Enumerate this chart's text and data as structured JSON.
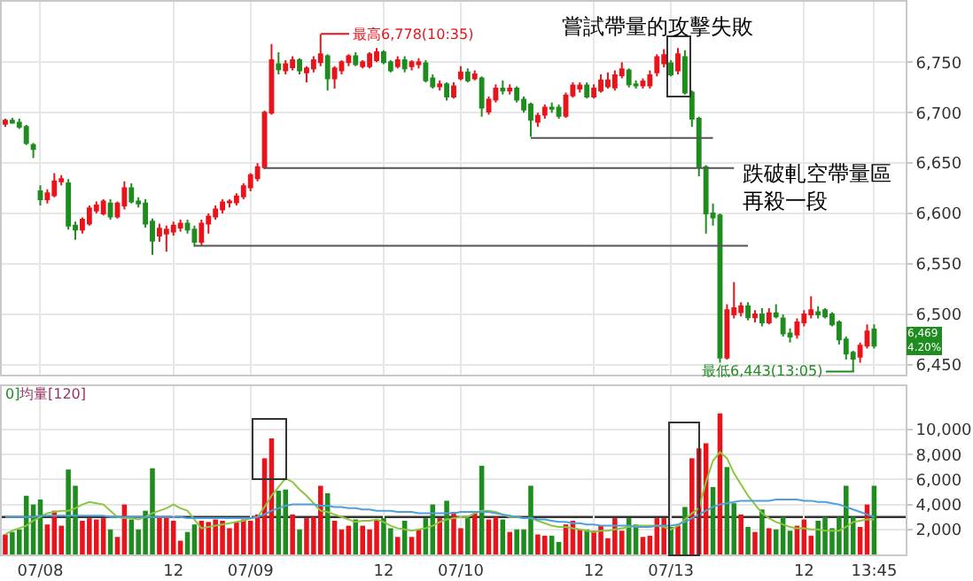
{
  "chart_data": [
    {
      "type": "candlestick",
      "colors": [
        "#e8141c",
        "#1e8c1e",
        "#1e8c1e",
        "#1e8c1e",
        "#1e8c1e",
        "#1e8c1e",
        "#e8141c",
        "#e8141c",
        "#e8141c",
        "#1e8c1e",
        "#1e8c1e",
        "#e8141c",
        "#e8141c",
        "#e8141c",
        "#e8141c",
        "#1e8c1e",
        "#e8141c",
        "#e8141c",
        "#1e8c1e",
        "#1e8c1e",
        "#1e8c1e",
        "#1e8c1e",
        "#e8141c",
        "#e8141c",
        "#e8141c",
        "#e8141c",
        "#1e8c1e",
        "#1e8c1e",
        "#e8141c",
        "#e8141c",
        "#e8141c",
        "#e8141c",
        "#e8141c",
        "#e8141c",
        "#e8141c",
        "#e8141c",
        "#e8141c",
        "#e8141c",
        "#e8141c",
        "#1e8c1e",
        "#e8141c",
        "#e8141c",
        "#1e8c1e",
        "#e8141c",
        "#e8141c",
        "#e8141c",
        "#1e8c1e",
        "#e8141c",
        "#e8141c",
        "#e8141c",
        "#1e8c1e",
        "#e8141c",
        "#e8141c",
        "#e8141c",
        "#1e8c1e",
        "#1e8c1e",
        "#e8141c",
        "#1e8c1e",
        "#e8141c",
        "#e8141c",
        "#1e8c1e",
        "#1e8c1e",
        "#e8141c",
        "#1e8c1e",
        "#e8141c",
        "#e8141c",
        "#1e8c1e",
        "#e8141c",
        "#1e8c1e",
        "#e8141c",
        "#e8141c",
        "#1e8c1e",
        "#e8141c",
        "#1e8c1e",
        "#1e8c1e",
        "#1e8c1e",
        "#e8141c",
        "#e8141c",
        "#1e8c1e",
        "#1e8c1e",
        "#e8141c",
        "#e8141c",
        "#e8141c",
        "#1e8c1e",
        "#e8141c",
        "#e8141c",
        "#e8141c",
        "#e8141c",
        "#e8141c",
        "#1e8c1e",
        "#1e8c1e",
        "#e8141c",
        "#e8141c",
        "#e8141c",
        "#e8141c",
        "#1e8c1e",
        "#e8141c",
        "#1e8c1e",
        "#1e8c1e",
        "#1e8c1e",
        "#1e8c1e",
        "#1e8c1e",
        "#1e8c1e",
        "#e8141c",
        "#e8141c",
        "#e8141c",
        "#1e8c1e",
        "#e8141c",
        "#1e8c1e",
        "#e8141c",
        "#1e8c1e",
        "#1e8c1e",
        "#1e8c1e",
        "#e8141c",
        "#e8141c",
        "#e8141c",
        "#1e8c1e",
        "#1e8c1e",
        "#1e8c1e",
        "#1e8c1e",
        "#1e8c1e",
        "#1e8c1e",
        "#e8141c",
        "#e8141c",
        "#1e8c1e"
      ],
      "ohlc": [
        [
          6689,
          6694,
          6686,
          6692
        ],
        [
          6692,
          6695,
          6689,
          6690
        ],
        [
          6690,
          6694,
          6684,
          6686
        ],
        [
          6686,
          6688,
          6668,
          6670
        ],
        [
          6668,
          6670,
          6655,
          6664
        ],
        [
          6622,
          6628,
          6608,
          6614
        ],
        [
          6614,
          6624,
          6610,
          6620
        ],
        [
          6618,
          6640,
          6616,
          6632
        ],
        [
          6632,
          6638,
          6628,
          6634
        ],
        [
          6630,
          6634,
          6584,
          6588
        ],
        [
          6588,
          6592,
          6574,
          6584
        ],
        [
          6584,
          6596,
          6580,
          6594
        ],
        [
          6590,
          6608,
          6588,
          6605
        ],
        [
          6603,
          6612,
          6600,
          6608
        ],
        [
          6600,
          6614,
          6598,
          6612
        ],
        [
          6610,
          6614,
          6594,
          6597
        ],
        [
          6597,
          6612,
          6595,
          6610
        ],
        [
          6608,
          6632,
          6604,
          6625
        ],
        [
          6625,
          6630,
          6610,
          6612
        ],
        [
          6612,
          6616,
          6606,
          6610
        ],
        [
          6610,
          6614,
          6586,
          6590
        ],
        [
          6592,
          6595,
          6559,
          6573
        ],
        [
          6578,
          6590,
          6572,
          6585
        ],
        [
          6580,
          6588,
          6562,
          6584
        ],
        [
          6582,
          6592,
          6578,
          6588
        ],
        [
          6586,
          6594,
          6582,
          6590
        ],
        [
          6590,
          6594,
          6580,
          6584
        ],
        [
          6584,
          6588,
          6567,
          6572
        ],
        [
          6572,
          6594,
          6568,
          6590
        ],
        [
          6590,
          6600,
          6580,
          6597
        ],
        [
          6597,
          6608,
          6594,
          6604
        ],
        [
          6604,
          6614,
          6600,
          6611
        ],
        [
          6611,
          6614,
          6606,
          6612
        ],
        [
          6611,
          6620,
          6608,
          6617
        ],
        [
          6617,
          6630,
          6614,
          6627
        ],
        [
          6626,
          6640,
          6622,
          6638
        ],
        [
          6635,
          6650,
          6632,
          6646
        ],
        [
          6646,
          6702,
          6644,
          6700
        ],
        [
          6700,
          6768,
          6698,
          6752
        ],
        [
          6748,
          6760,
          6738,
          6743
        ],
        [
          6742,
          6752,
          6738,
          6748
        ],
        [
          6745,
          6756,
          6742,
          6752
        ],
        [
          6752,
          6754,
          6738,
          6742
        ],
        [
          6740,
          6746,
          6730,
          6744
        ],
        [
          6744,
          6756,
          6740,
          6752
        ],
        [
          6750,
          6778,
          6746,
          6758
        ],
        [
          6756,
          6758,
          6722,
          6734
        ],
        [
          6734,
          6746,
          6724,
          6744
        ],
        [
          6742,
          6752,
          6738,
          6750
        ],
        [
          6750,
          6758,
          6746,
          6756
        ],
        [
          6756,
          6760,
          6746,
          6748
        ],
        [
          6746,
          6752,
          6744,
          6750
        ],
        [
          6746,
          6760,
          6744,
          6758
        ],
        [
          6752,
          6764,
          6750,
          6760
        ],
        [
          6760,
          6762,
          6748,
          6750
        ],
        [
          6750,
          6752,
          6740,
          6742
        ],
        [
          6746,
          6756,
          6744,
          6752
        ],
        [
          6752,
          6756,
          6740,
          6744
        ],
        [
          6746,
          6752,
          6742,
          6750
        ],
        [
          6748,
          6754,
          6744,
          6750
        ],
        [
          6749,
          6752,
          6730,
          6732
        ],
        [
          6734,
          6738,
          6724,
          6726
        ],
        [
          6726,
          6732,
          6722,
          6728
        ],
        [
          6728,
          6730,
          6712,
          6716
        ],
        [
          6716,
          6730,
          6714,
          6726
        ],
        [
          6734,
          6746,
          6732,
          6740
        ],
        [
          6740,
          6744,
          6730,
          6732
        ],
        [
          6734,
          6742,
          6732,
          6738
        ],
        [
          6734,
          6736,
          6696,
          6705
        ],
        [
          6701,
          6716,
          6698,
          6713
        ],
        [
          6713,
          6728,
          6710,
          6724
        ],
        [
          6724,
          6732,
          6718,
          6722
        ],
        [
          6722,
          6728,
          6718,
          6724
        ],
        [
          6724,
          6726,
          6710,
          6713
        ],
        [
          6713,
          6716,
          6700,
          6703
        ],
        [
          6708,
          6710,
          6676,
          6693
        ],
        [
          6691,
          6700,
          6686,
          6697
        ],
        [
          6698,
          6708,
          6694,
          6705
        ],
        [
          6705,
          6710,
          6700,
          6704
        ],
        [
          6705,
          6708,
          6694,
          6697
        ],
        [
          6697,
          6720,
          6695,
          6717
        ],
        [
          6717,
          6730,
          6715,
          6727
        ],
        [
          6724,
          6730,
          6720,
          6727
        ],
        [
          6727,
          6730,
          6714,
          6716
        ],
        [
          6716,
          6728,
          6714,
          6724
        ],
        [
          6722,
          6738,
          6720,
          6732
        ],
        [
          6726,
          6740,
          6724,
          6732
        ],
        [
          6725,
          6742,
          6722,
          6737
        ],
        [
          6737,
          6750,
          6734,
          6743
        ],
        [
          6742,
          6744,
          6725,
          6728
        ],
        [
          6728,
          6732,
          6724,
          6727
        ],
        [
          6727,
          6734,
          6724,
          6731
        ],
        [
          6727,
          6742,
          6724,
          6737
        ],
        [
          6740,
          6758,
          6736,
          6755
        ],
        [
          6749,
          6763,
          6745,
          6757
        ],
        [
          6749,
          6752,
          6736,
          6738
        ],
        [
          6742,
          6764,
          6738,
          6758
        ],
        [
          6755,
          6762,
          6718,
          6720
        ],
        [
          6720,
          6722,
          6686,
          6694
        ],
        [
          6694,
          6696,
          6637,
          6646
        ],
        [
          6646,
          6648,
          6580,
          6600
        ],
        [
          6600,
          6610,
          6588,
          6596
        ],
        [
          6598,
          6600,
          6452,
          6457
        ],
        [
          6457,
          6510,
          6455,
          6504
        ],
        [
          6500,
          6532,
          6496,
          6506
        ],
        [
          6502,
          6512,
          6498,
          6508
        ],
        [
          6508,
          6512,
          6494,
          6497
        ],
        [
          6497,
          6504,
          6492,
          6500
        ],
        [
          6500,
          6506,
          6488,
          6492
        ],
        [
          6492,
          6506,
          6490,
          6501
        ],
        [
          6501,
          6510,
          6496,
          6498
        ],
        [
          6496,
          6500,
          6478,
          6481
        ],
        [
          6481,
          6486,
          6472,
          6478
        ],
        [
          6480,
          6496,
          6476,
          6492
        ],
        [
          6492,
          6504,
          6488,
          6500
        ],
        [
          6500,
          6518,
          6496,
          6504
        ],
        [
          6502,
          6508,
          6496,
          6500
        ],
        [
          6504,
          6506,
          6496,
          6498
        ],
        [
          6500,
          6502,
          6488,
          6490
        ],
        [
          6492,
          6494,
          6470,
          6475
        ],
        [
          6475,
          6478,
          6455,
          6461
        ],
        [
          6462,
          6464,
          6443,
          6456
        ],
        [
          6458,
          6472,
          6452,
          6469
        ],
        [
          6469,
          6490,
          6466,
          6483
        ],
        [
          6485,
          6490,
          6466,
          6469
        ]
      ],
      "series": [
        {
          "type": "line",
          "color": "#555555",
          "values": [
            null,
            null,
            null,
            null,
            null,
            null,
            null,
            null,
            null,
            null,
            null,
            null,
            null,
            null,
            null,
            null,
            null,
            null,
            null,
            null,
            null,
            null,
            null,
            null,
            null,
            null,
            null,
            null,
            null,
            null,
            null,
            null,
            null,
            null,
            null,
            null,
            null,
            null,
            null,
            null,
            null,
            null,
            null,
            null,
            null,
            null,
            null,
            null,
            null,
            null,
            null,
            null,
            null,
            null,
            null,
            null,
            null,
            null,
            null,
            null,
            null,
            null,
            null,
            null,
            null,
            null,
            null,
            null,
            null,
            null,
            null,
            null,
            null,
            null,
            null,
            6675,
            6675,
            6675,
            6675,
            6675,
            6675,
            6675,
            6675,
            6675,
            6675,
            6675,
            6675,
            6675,
            6675,
            6675,
            6675,
            6675,
            6675,
            6675,
            6675,
            6675,
            6675,
            6675,
            6675,
            6675,
            6675,
            6675,
            null,
            null,
            null,
            null,
            null,
            null,
            null,
            null,
            null,
            null,
            null,
            null,
            null,
            null,
            null,
            null,
            null,
            null,
            null,
            null,
            null,
            null,
            null
          ]
        },
        {
          "type": "line",
          "color": "#555555",
          "values": [
            null,
            null,
            null,
            null,
            null,
            null,
            null,
            null,
            null,
            null,
            null,
            null,
            null,
            null,
            null,
            null,
            null,
            null,
            null,
            null,
            null,
            null,
            null,
            null,
            null,
            null,
            null,
            null,
            null,
            null,
            null,
            null,
            null,
            null,
            null,
            null,
            null,
            6645,
            6645,
            6645,
            6645,
            6645,
            6645,
            6645,
            6645,
            6645,
            6645,
            6645,
            6645,
            6645,
            6645,
            6645,
            6645,
            6645,
            6645,
            6645,
            6645,
            6645,
            6645,
            6645,
            6645,
            6645,
            6645,
            6645,
            6645,
            6645,
            6645,
            6645,
            6645,
            6645,
            6645,
            6645,
            6645,
            6645,
            6645,
            6645,
            6645,
            6645,
            6645,
            6645,
            6645,
            6645,
            6645,
            6645,
            6645,
            6645,
            6645,
            6645,
            6645,
            6645,
            6645,
            6645,
            6645,
            6645,
            6645,
            6645,
            6645,
            6645,
            6645,
            6645,
            6645,
            6645,
            6645,
            6645,
            6645,
            null,
            null,
            null,
            null,
            null,
            null,
            null,
            null,
            null,
            null,
            null,
            null,
            null,
            null,
            null,
            null,
            null,
            null,
            null,
            null
          ]
        },
        {
          "type": "line",
          "color": "#555555",
          "values": [
            null,
            null,
            null,
            null,
            null,
            null,
            null,
            null,
            null,
            null,
            null,
            null,
            null,
            null,
            null,
            null,
            null,
            null,
            null,
            null,
            null,
            null,
            null,
            null,
            null,
            null,
            null,
            6568,
            6568,
            6568,
            6568,
            6568,
            6568,
            6568,
            6568,
            6568,
            6568,
            6568,
            6568,
            6568,
            6568,
            6568,
            6568,
            6568,
            6568,
            6568,
            6568,
            6568,
            6568,
            6568,
            6568,
            6568,
            6568,
            6568,
            6568,
            6568,
            6568,
            6568,
            6568,
            6568,
            6568,
            6568,
            6568,
            6568,
            6568,
            6568,
            6568,
            6568,
            6568,
            6568,
            6568,
            6568,
            6568,
            6568,
            6568,
            6568,
            6568,
            6568,
            6568,
            6568,
            6568,
            6568,
            6568,
            6568,
            6568,
            6568,
            6568,
            6568,
            6568,
            6568,
            6568,
            6568,
            6568,
            6568,
            6568,
            6568,
            6568,
            6568,
            6568,
            6568,
            6568,
            6568,
            6568,
            6568,
            6568,
            6568,
            6568,
            null,
            null,
            null,
            null,
            null,
            null,
            null,
            null,
            null,
            null,
            null,
            null,
            null,
            null,
            null,
            null,
            null,
            null
          ]
        }
      ],
      "ylim": [
        6440,
        6810
      ],
      "yticks": [
        {
          "value": 6450,
          "label": "6,450"
        },
        {
          "value": 6500,
          "label": "6,500"
        },
        {
          "value": 6550,
          "label": "6,550"
        },
        {
          "value": 6600,
          "label": "6,600"
        },
        {
          "value": 6650,
          "label": "6,650"
        },
        {
          "value": 6700,
          "label": "6,700"
        },
        {
          "value": 6750,
          "label": "6,750"
        }
      ],
      "grid": true,
      "tick_labels": "y",
      "annotations": [
        "最高6,778(10:35)",
        "最低6,443(13:05)",
        "嘗試帶量的攻擊失敗",
        "跌破軋空帶量區再殺一段",
        "6,469\n4.20%"
      ]
    },
    {
      "type": "bar",
      "categories": [
        null,
        null,
        null,
        null,
        null,
        "07/08",
        null,
        null,
        null,
        null,
        null,
        null,
        null,
        null,
        null,
        null,
        null,
        null,
        null,
        null,
        null,
        null,
        null,
        null,
        "12",
        null,
        null,
        null,
        null,
        null,
        null,
        null,
        null,
        null,
        null,
        "07/09",
        null,
        null,
        null,
        null,
        null,
        null,
        null,
        null,
        null,
        null,
        null,
        null,
        null,
        null,
        null,
        null,
        null,
        null,
        "12",
        null,
        null,
        null,
        null,
        null,
        null,
        null,
        null,
        null,
        null,
        "07/10",
        null,
        null,
        null,
        null,
        null,
        null,
        null,
        null,
        null,
        null,
        null,
        null,
        null,
        null,
        null,
        null,
        null,
        null,
        "12",
        null,
        null,
        null,
        null,
        null,
        null,
        null,
        null,
        null,
        null,
        "07/13",
        null,
        null,
        null,
        null,
        null,
        null,
        null,
        null,
        null,
        null,
        null,
        null,
        null,
        null,
        null,
        null,
        null,
        null,
        "12",
        null,
        null,
        null,
        null,
        null,
        null,
        null,
        null,
        null,
        "13:45"
      ],
      "series": [
        {
          "type": "bar",
          "values": [
            1600,
            1800,
            2000,
            4700,
            4000,
            4400,
            2400,
            3500,
            2300,
            6800,
            5500,
            2700,
            2900,
            2800,
            2900,
            2000,
            1400,
            4000,
            2800,
            2000,
            3500,
            6900,
            3000,
            3000,
            2700,
            1100,
            1800,
            2400,
            2700,
            2600,
            2800,
            2700,
            2100,
            2600,
            2800,
            2700,
            3200,
            7700,
            9300,
            5100,
            5200,
            3200,
            2000,
            2900,
            3000,
            5500,
            4900,
            2700,
            2000,
            2300,
            2800,
            2300,
            2000,
            2800,
            2900,
            2100,
            1400,
            2700,
            1400,
            2000,
            2900,
            4000,
            2900,
            4300,
            3400,
            2100,
            2900,
            3300,
            7100,
            2800,
            3000,
            2800,
            1800,
            2000,
            2000,
            5500,
            1600,
            1500,
            1500,
            1000,
            2400,
            2700,
            2000,
            2000,
            1900,
            2300,
            1300,
            2900,
            1900,
            2900,
            2400,
            1400,
            1500,
            2900,
            2900,
            2200,
            2300,
            3800,
            7700,
            8500,
            8900,
            5400,
            11300,
            7000,
            4100,
            3200,
            2200,
            1800,
            3600,
            2100,
            2000,
            3000,
            1900,
            2300,
            2800,
            1500,
            2700,
            3000,
            2100,
            3000,
            5500,
            3000,
            2200,
            4000,
            5500
          ],
          "colors": [
            "#e8141c",
            "#1e8c1e",
            "#1e8c1e",
            "#1e8c1e",
            "#1e8c1e",
            "#1e8c1e",
            "#e8141c",
            "#e8141c",
            "#e8141c",
            "#1e8c1e",
            "#1e8c1e",
            "#e8141c",
            "#e8141c",
            "#e8141c",
            "#e8141c",
            "#1e8c1e",
            "#e8141c",
            "#e8141c",
            "#1e8c1e",
            "#1e8c1e",
            "#1e8c1e",
            "#1e8c1e",
            "#e8141c",
            "#e8141c",
            "#e8141c",
            "#e8141c",
            "#1e8c1e",
            "#1e8c1e",
            "#e8141c",
            "#e8141c",
            "#e8141c",
            "#e8141c",
            "#e8141c",
            "#e8141c",
            "#e8141c",
            "#e8141c",
            "#e8141c",
            "#e8141c",
            "#e8141c",
            "#1e8c1e",
            "#1e8c1e",
            "#e8141c",
            "#1e8c1e",
            "#e8141c",
            "#e8141c",
            "#e8141c",
            "#1e8c1e",
            "#e8141c",
            "#e8141c",
            "#e8141c",
            "#1e8c1e",
            "#e8141c",
            "#e8141c",
            "#e8141c",
            "#1e8c1e",
            "#1e8c1e",
            "#e8141c",
            "#1e8c1e",
            "#e8141c",
            "#e8141c",
            "#1e8c1e",
            "#1e8c1e",
            "#e8141c",
            "#1e8c1e",
            "#e8141c",
            "#e8141c",
            "#1e8c1e",
            "#e8141c",
            "#1e8c1e",
            "#e8141c",
            "#e8141c",
            "#1e8c1e",
            "#e8141c",
            "#1e8c1e",
            "#1e8c1e",
            "#1e8c1e",
            "#e8141c",
            "#e8141c",
            "#1e8c1e",
            "#1e8c1e",
            "#e8141c",
            "#e8141c",
            "#e8141c",
            "#1e8c1e",
            "#e8141c",
            "#e8141c",
            "#e8141c",
            "#e8141c",
            "#e8141c",
            "#1e8c1e",
            "#1e8c1e",
            "#e8141c",
            "#e8141c",
            "#e8141c",
            "#e8141c",
            "#1e8c1e",
            "#e8141c",
            "#1e8c1e",
            "#e8141c",
            "#e8141c",
            "#e8141c",
            "#1e8c1e",
            "#e8141c",
            "#1e8c1e",
            "#1e8c1e",
            "#e8141c",
            "#1e8c1e",
            "#e8141c",
            "#1e8c1e",
            "#e8141c",
            "#1e8c1e",
            "#1e8c1e",
            "#1e8c1e",
            "#e8141c",
            "#e8141c",
            "#e8141c",
            "#1e8c1e",
            "#1e8c1e",
            "#1e8c1e",
            "#1e8c1e",
            "#1e8c1e",
            "#1e8c1e",
            "#e8141c",
            "#e8141c",
            "#1e8c1e"
          ]
        },
        {
          "type": "line",
          "color": "#8cc63f",
          "values": [
            1600,
            1900,
            2100,
            2300,
            2700,
            3000,
            3300,
            3400,
            3500,
            3500,
            3700,
            4000,
            4200,
            4100,
            4000,
            3500,
            3000,
            2900,
            2900,
            2800,
            3000,
            3300,
            3500,
            3700,
            4000,
            3700,
            3500,
            2800,
            2100,
            2200,
            2300,
            2400,
            2500,
            2600,
            2700,
            2900,
            3000,
            3800,
            4700,
            5400,
            6100,
            5800,
            5200,
            4700,
            4100,
            3500,
            3400,
            3200,
            3000,
            2800,
            2600,
            2700,
            2700,
            2800,
            2600,
            2300,
            2100,
            2000,
            1900,
            2000,
            2100,
            2300,
            2600,
            2800,
            2900,
            3000,
            3000,
            3300,
            3500,
            3500,
            3400,
            3200,
            3000,
            3000,
            2900,
            2900,
            2700,
            2500,
            2300,
            2200,
            2200,
            2100,
            2000,
            1900,
            1800,
            1900,
            1900,
            2000,
            2100,
            2200,
            2300,
            2300,
            2300,
            2300,
            2200,
            2000,
            2300,
            2800,
            3300,
            3700,
            5800,
            7500,
            8200,
            7700,
            6500,
            5600,
            4700,
            4000,
            3300,
            2900,
            2600,
            2400,
            2200,
            2100,
            2100,
            2000,
            2000,
            1900,
            1900,
            1900,
            2200,
            2600,
            2700,
            2800,
            2800
          ]
        },
        {
          "type": "line",
          "color": "#4f9fd8",
          "values": [
            3000,
            3000,
            3000,
            3000,
            3000,
            3100,
            3100,
            3100,
            3100,
            3100,
            3100,
            3100,
            3100,
            3100,
            3100,
            3000,
            3000,
            3000,
            3000,
            3000,
            3000,
            3000,
            3000,
            3000,
            3000,
            3000,
            2900,
            2900,
            2900,
            2900,
            2900,
            2900,
            2900,
            2900,
            2900,
            2900,
            3000,
            3200,
            3500,
            3700,
            3900,
            4000,
            4000,
            4000,
            4000,
            3900,
            3900,
            3800,
            3800,
            3700,
            3700,
            3600,
            3600,
            3500,
            3500,
            3500,
            3400,
            3400,
            3400,
            3300,
            3300,
            3300,
            3300,
            3300,
            3300,
            3400,
            3400,
            3400,
            3400,
            3400,
            3300,
            3200,
            3100,
            3000,
            2900,
            2900,
            2800,
            2800,
            2700,
            2600,
            2600,
            2500,
            2500,
            2400,
            2400,
            2300,
            2300,
            2300,
            2300,
            2300,
            2200,
            2200,
            2200,
            2300,
            2300,
            2300,
            2400,
            2600,
            2900,
            3200,
            3500,
            3800,
            4000,
            4100,
            4200,
            4300,
            4300,
            4300,
            4300,
            4300,
            4400,
            4400,
            4400,
            4400,
            4300,
            4300,
            4200,
            4200,
            4100,
            4000,
            3800,
            3600,
            3400,
            3200,
            3000
          ]
        }
      ],
      "ylim": [
        0,
        13500
      ],
      "yticks": [
        {
          "value": 2000,
          "label": "2,000"
        },
        {
          "value": 4000,
          "label": "4,000"
        },
        {
          "value": 6000,
          "label": "6,000"
        },
        {
          "value": 8000,
          "label": "8,000"
        },
        {
          "value": 10000,
          "label": "10,000"
        }
      ],
      "grid": true,
      "ref_lines": [
        {
          "axis": "y",
          "value": 3000,
          "color": "#333333"
        }
      ],
      "annotations": [
        "0]",
        "均量[120]"
      ]
    }
  ]
}
